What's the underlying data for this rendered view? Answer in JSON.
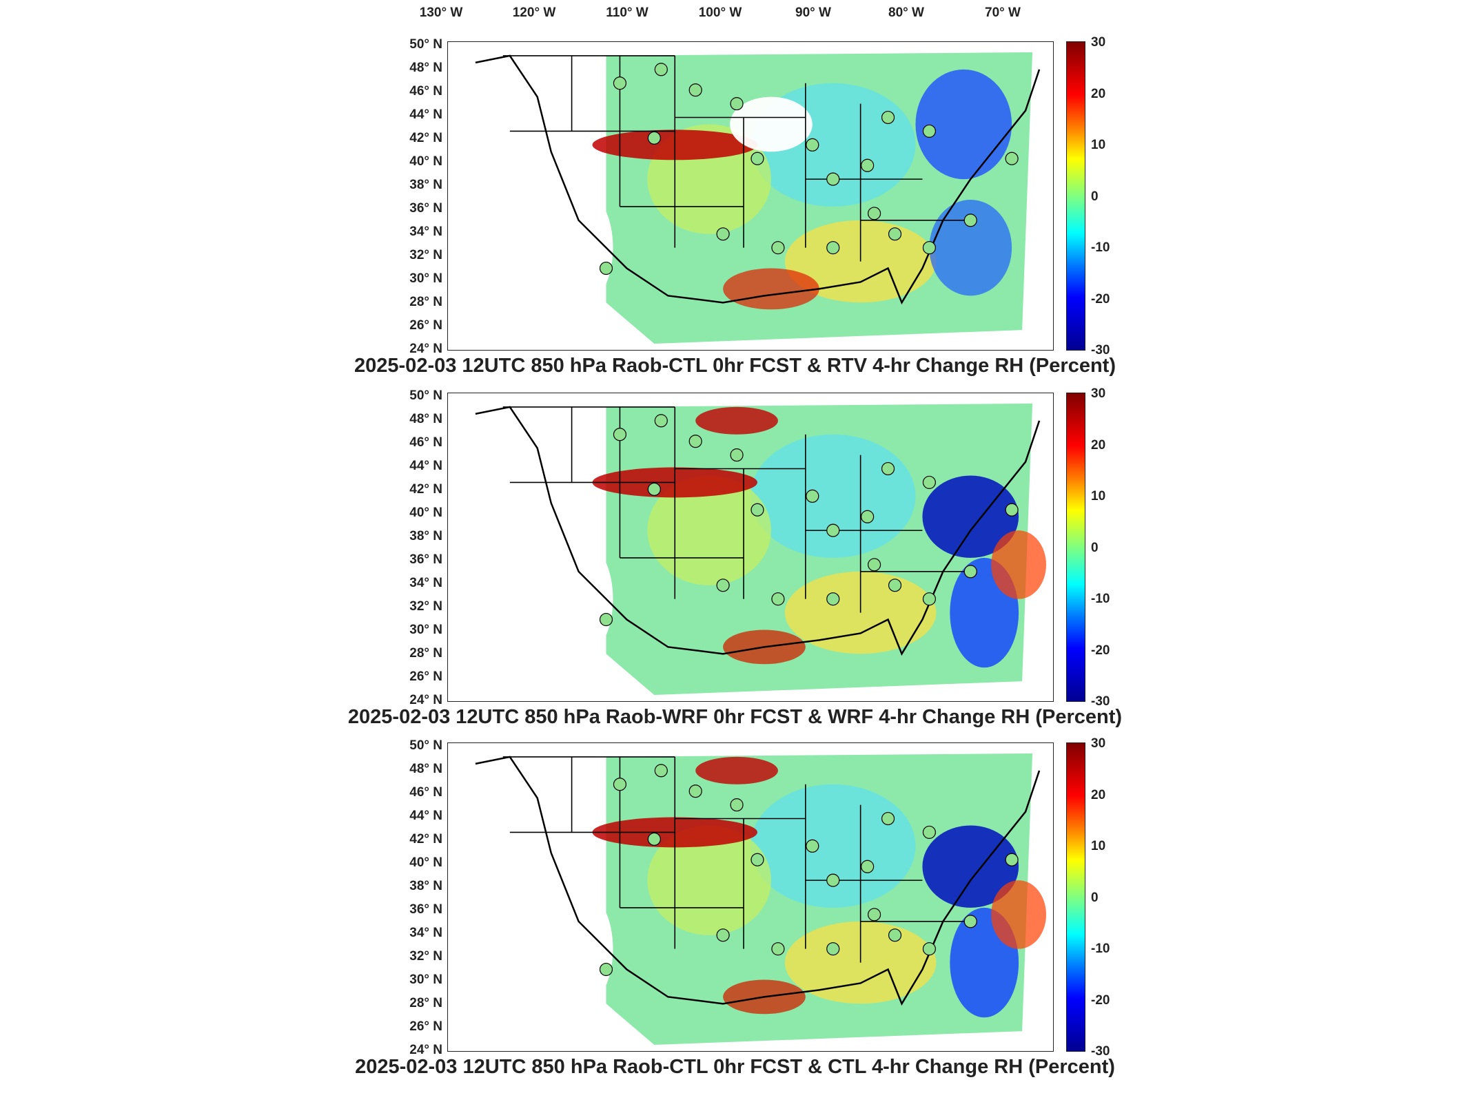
{
  "lon_labels": [
    "130° W",
    "120° W",
    "110° W",
    "100° W",
    "90° W",
    "80° W",
    "70° W"
  ],
  "lat_labels": [
    "50° N",
    "48° N",
    "46° N",
    "44° N",
    "42° N",
    "40° N",
    "38° N",
    "36° N",
    "34° N",
    "32° N",
    "30° N",
    "28° N",
    "26° N",
    "24° N"
  ],
  "colorbar": {
    "ticks": [
      "30",
      "20",
      "10",
      "0",
      "-10",
      "-20",
      "-30"
    ]
  },
  "panels": [
    {
      "title": "2025-02-03 12UTC 850 hPa Raob-CTL 0hr FCST & RTV 4-hr Change RH (Percent)"
    },
    {
      "title": "2025-02-03 12UTC 850 hPa Raob-WRF 0hr FCST & WRF 4-hr Change RH (Percent)"
    },
    {
      "title": "2025-02-03 12UTC 850 hPa Raob-CTL 0hr FCST & CTL 4-hr Change RH (Percent)"
    }
  ]
}
